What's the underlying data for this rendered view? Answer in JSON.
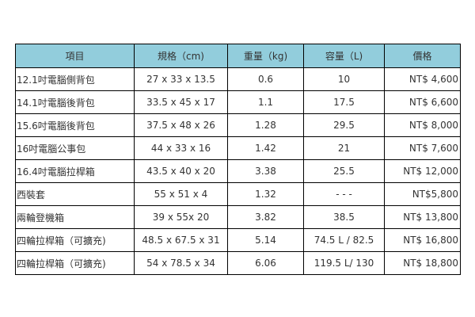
{
  "table": {
    "header_bg": "#92cddc",
    "headers": [
      "項目",
      "規格（cm)",
      "重量（kg)",
      "容量（L)",
      "價格"
    ],
    "rows": [
      [
        "12.1吋電腦側背包",
        "27 x 33 x 13.5",
        "0.6",
        "10",
        "NT$ 4,600"
      ],
      [
        "14.1吋電腦後背包",
        "33.5 x 45 x 17",
        "1.1",
        "17.5",
        "NT$ 6,600"
      ],
      [
        "15.6吋電腦後背包",
        "37.5 x 48 x 26",
        "1.28",
        "29.5",
        "NT$ 8,000"
      ],
      [
        "16吋電腦公事包",
        "44 x 33 x 16",
        "1.42",
        "21",
        "NT$ 7,600"
      ],
      [
        "16.4吋電腦拉桿箱",
        "43.5 x 40 x 20",
        "3.38",
        "25.5",
        "NT$ 12,000"
      ],
      [
        "西裝套",
        "55 x 51 x 4",
        "1.32",
        "- - -",
        "NT$5,800"
      ],
      [
        "兩輪登機箱",
        "39 x 55x 20",
        "3.82",
        "38.5",
        "NT$ 13,800"
      ],
      [
        "四輪拉桿箱（可擴充)",
        "48.5 x 67.5 x 31",
        "5.14",
        "74.5 L / 82.5",
        "NT$ 16,800"
      ],
      [
        "四輪拉桿箱（可擴充)",
        "54 x 78.5 x 34",
        "6.06",
        "119.5 L/ 130",
        "NT$ 18,800"
      ]
    ]
  }
}
